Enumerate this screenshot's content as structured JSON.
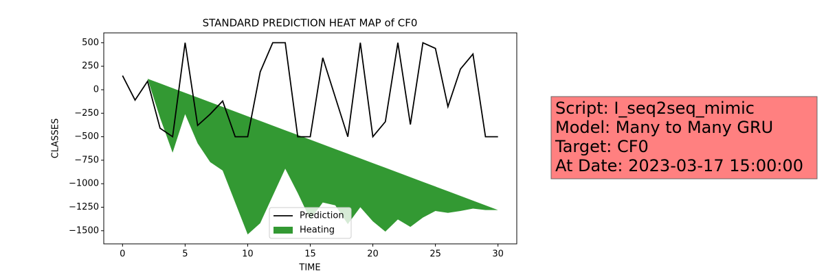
{
  "chart_data": {
    "type": "line",
    "title": "STANDARD PREDICTION HEAT MAP of CF0",
    "xlabel": "TIME",
    "ylabel": "CLASSES",
    "x": [
      0,
      1,
      2,
      3,
      4,
      5,
      6,
      7,
      8,
      9,
      10,
      11,
      12,
      13,
      14,
      15,
      16,
      17,
      18,
      19,
      20,
      21,
      22,
      23,
      24,
      25,
      26,
      27,
      28,
      29,
      30
    ],
    "series": [
      {
        "name": "Prediction",
        "type": "line",
        "color": "#000000",
        "values": [
          150,
          -110,
          90,
          -410,
          -500,
          500,
          -380,
          -260,
          -120,
          -500,
          -500,
          190,
          500,
          500,
          -500,
          -500,
          340,
          -80,
          -500,
          500,
          -500,
          -340,
          500,
          -370,
          500,
          440,
          -180,
          220,
          380,
          -500,
          -500
        ]
      },
      {
        "name": "Heating",
        "type": "fill_between",
        "color": "#339933",
        "high": [
          150,
          50,
          117,
          67,
          17,
          -33,
          -82,
          -132,
          -182,
          -232,
          -282,
          -332,
          -382,
          -432,
          -481,
          -531,
          -581,
          -631,
          -681,
          -731,
          -781,
          -830,
          -880,
          -930,
          -980,
          -1030,
          -1080,
          -1130,
          -1180,
          -1230,
          -1280
        ],
        "low": [
          150,
          50,
          117,
          -300,
          -670,
          -260,
          -570,
          -770,
          -860,
          -1200,
          -1540,
          -1420,
          -1130,
          -840,
          -1100,
          -1380,
          -1200,
          -1230,
          -1430,
          -1250,
          -1400,
          -1510,
          -1380,
          -1460,
          -1360,
          -1290,
          -1310,
          -1290,
          -1265,
          -1280,
          -1280
        ]
      }
    ],
    "xlim": [
      -1.5,
      31.5
    ],
    "ylim": [
      -1640,
      605
    ],
    "xticks": [
      0,
      5,
      10,
      15,
      20,
      25,
      30
    ],
    "yticks": [
      {
        "value": -1500,
        "label": "−1500"
      },
      {
        "value": -1250,
        "label": "−1250"
      },
      {
        "value": -1000,
        "label": "−1000"
      },
      {
        "value": -750,
        "label": "−750"
      },
      {
        "value": -500,
        "label": "−500"
      },
      {
        "value": -250,
        "label": "−250"
      },
      0,
      250,
      500
    ],
    "legend": "lower center",
    "annotation": [
      "Script: I_seq2seq_mimic",
      "Model: Many to Many GRU",
      "Target: CF0",
      "At Date: 2023-03-17 15:00:00"
    ]
  }
}
